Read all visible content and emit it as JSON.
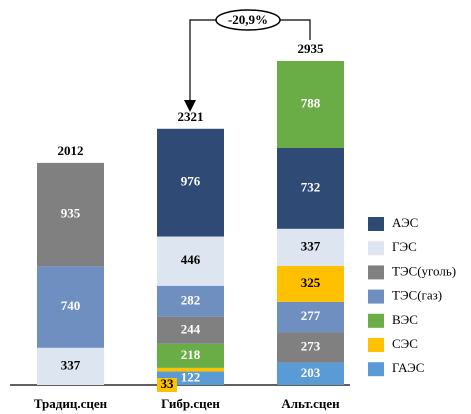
{
  "chart_data": {
    "type": "stacked_bar",
    "categories": [
      "Традиц.сцен",
      "Гибр.сцен",
      "Альт.сцен"
    ],
    "series": [
      {
        "name": "АЭС",
        "color": "#2e4a75",
        "values": [
          null,
          976,
          732
        ]
      },
      {
        "name": "ГЭС",
        "color": "#dde5f0",
        "values": [
          337,
          446,
          337
        ]
      },
      {
        "name": "ТЭС(уголь)",
        "color": "#808080",
        "values": [
          935,
          244,
          273
        ]
      },
      {
        "name": "ТЭС(газ)",
        "color": "#6f8fc0",
        "values": [
          740,
          282,
          277
        ]
      },
      {
        "name": "ВЭС",
        "color": "#6aac46",
        "values": [
          null,
          218,
          788
        ]
      },
      {
        "name": "СЭС",
        "color": "#ffc000",
        "values": [
          null,
          33,
          325
        ]
      },
      {
        "name": "ГАЭС",
        "color": "#5b9bd5",
        "values": [
          null,
          122,
          203
        ]
      }
    ],
    "stack_order": [
      [
        1,
        3,
        2
      ],
      [
        6,
        5,
        4,
        2,
        3,
        1,
        0
      ],
      [
        6,
        2,
        3,
        5,
        1,
        0,
        4
      ]
    ],
    "totals": [
      2012,
      2321,
      2935
    ],
    "annotation": "-20,9%"
  }
}
